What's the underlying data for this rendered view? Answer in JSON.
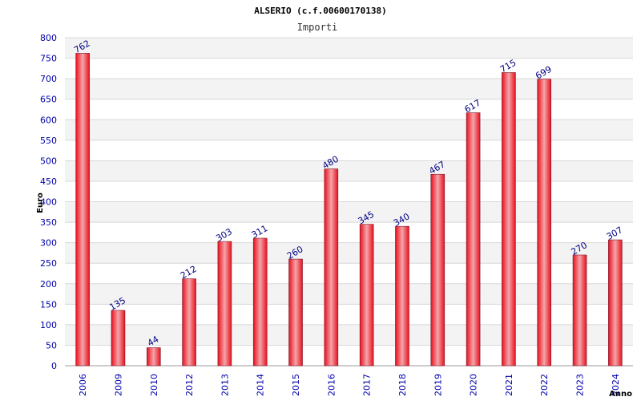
{
  "chart_data": {
    "type": "bar",
    "title": "ALSERIO (c.f.00600170138)",
    "subtitle": "Importi",
    "xlabel": "Anno",
    "ylabel": "Euro",
    "categories": [
      "2006",
      "2009",
      "2010",
      "2012",
      "2013",
      "2014",
      "2015",
      "2016",
      "2017",
      "2018",
      "2019",
      "2020",
      "2021",
      "2022",
      "2023",
      "2024"
    ],
    "values": [
      762,
      135,
      44,
      212,
      303,
      311,
      260,
      480,
      345,
      340,
      467,
      617,
      715,
      699,
      270,
      307
    ],
    "ylim": [
      0,
      800
    ],
    "ytick_step": 50,
    "grid": true,
    "legend": "none"
  },
  "colors": {
    "bar_edge": "#e8101c",
    "bar_center": "#f4a5aa",
    "bar_outline": "#7a1a2e",
    "axis_text": "#0000aa",
    "label_text": "#000080",
    "band_light": "#f3f3f3",
    "band_white": "#ffffff",
    "grid_line": "#d8d8d8"
  }
}
